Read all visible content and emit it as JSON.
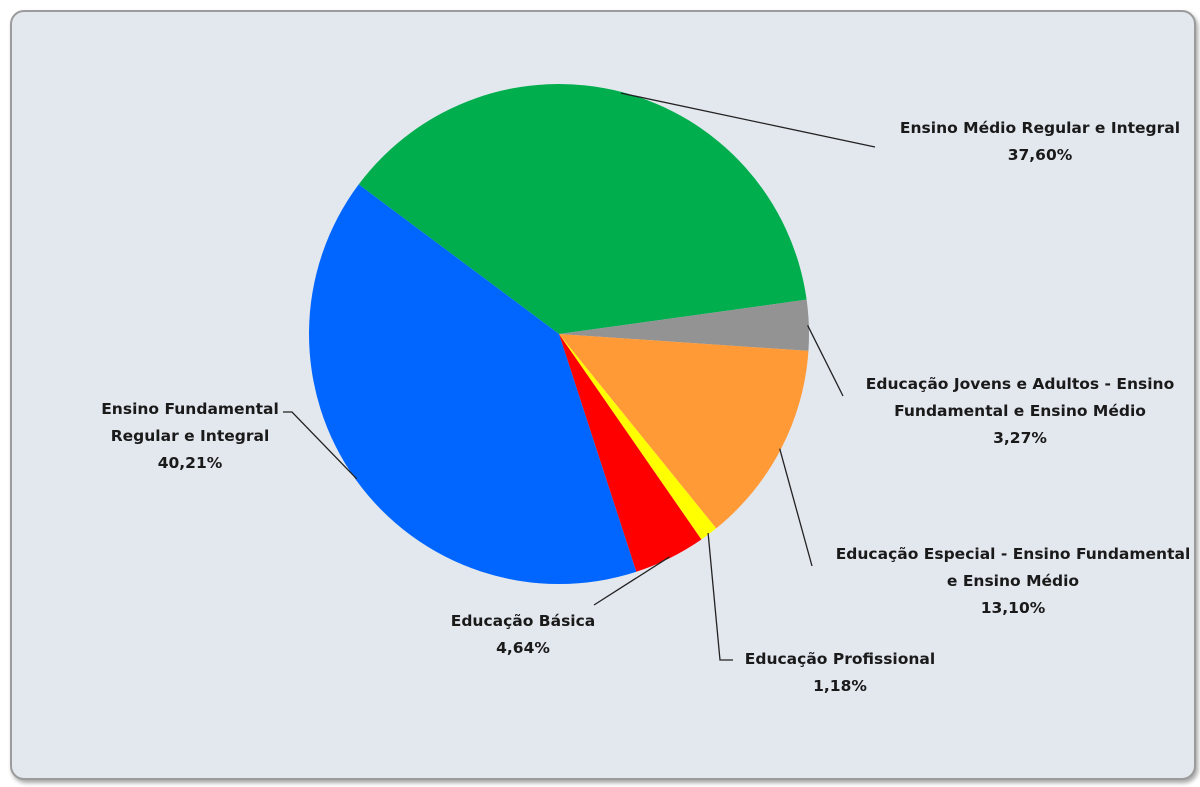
{
  "chart_data": {
    "type": "pie",
    "slices": [
      {
        "label_lines": [
          "Ensino Médio Regular e Integral"
        ],
        "value": 37.6,
        "value_label": "37,60%",
        "color": "#00ae4e"
      },
      {
        "label_lines": [
          "Educação Jovens e Adultos - Ensino",
          "Fundamental e Ensino Médio"
        ],
        "value": 3.27,
        "value_label": "3,27%",
        "color": "#939393"
      },
      {
        "label_lines": [
          "Educação Especial - Ensino Fundamental",
          "e Ensino Médio"
        ],
        "value": 13.1,
        "value_label": "13,10%",
        "color": "#ff9a37"
      },
      {
        "label_lines": [
          "Educação Profissional"
        ],
        "value": 1.18,
        "value_label": "1,18%",
        "color": "#ffff00"
      },
      {
        "label_lines": [
          "Educação Básica"
        ],
        "value": 4.64,
        "value_label": "4,64%",
        "color": "#ff0000"
      },
      {
        "label_lines": [
          "Ensino Fundamental",
          "Regular e Integral"
        ],
        "value": 40.21,
        "value_label": "40,21%",
        "color": "#0066ff"
      }
    ]
  }
}
